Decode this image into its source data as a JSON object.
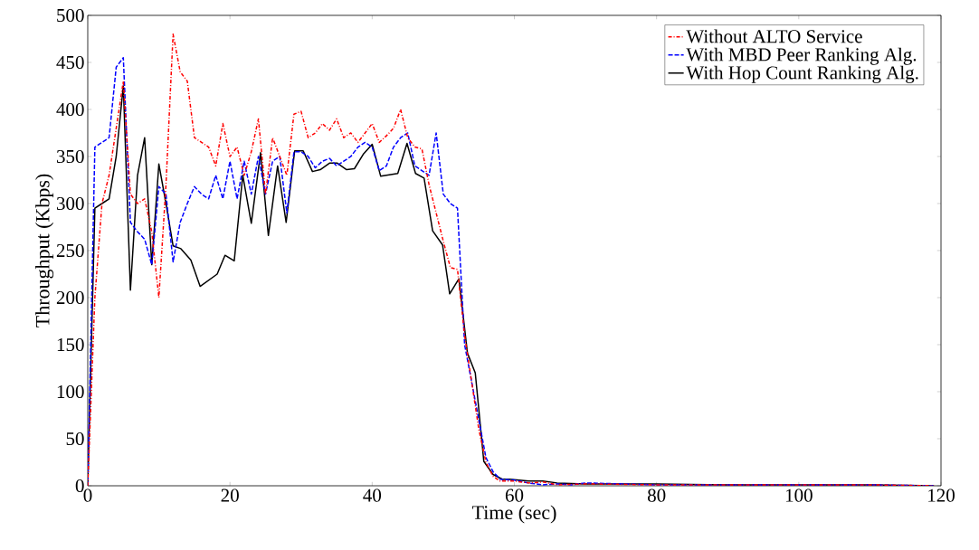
{
  "chart_data": {
    "type": "line",
    "xlabel": "Time (sec)",
    "ylabel": "Throughput (Kbps)",
    "xlim": [
      0,
      120
    ],
    "ylim": [
      0,
      500
    ],
    "xticks": [
      0,
      20,
      40,
      60,
      80,
      100,
      120
    ],
    "yticks": [
      0,
      50,
      100,
      150,
      200,
      250,
      300,
      350,
      400,
      450,
      500
    ],
    "grid": false,
    "legend": "top right",
    "marker": "none",
    "series": [
      {
        "name": "Without ALTO Service",
        "color": "#ff0000",
        "line_style": "dashdot",
        "x": [
          0,
          1,
          2,
          3,
          4,
          5,
          6,
          7,
          8,
          9,
          10,
          11,
          12,
          13,
          14,
          15,
          16,
          17,
          18,
          19,
          20,
          21,
          22,
          23,
          24,
          25,
          26,
          27,
          28,
          29,
          30,
          31,
          32,
          33,
          34,
          35,
          36,
          37,
          38,
          39,
          40,
          41,
          42,
          43,
          44,
          45,
          46,
          47,
          48,
          49,
          50,
          51,
          52,
          53,
          54,
          55,
          56,
          57,
          58,
          60,
          62,
          64,
          66,
          70,
          80,
          90,
          100,
          110,
          119
        ],
        "values": [
          0,
          200,
          300,
          330,
          380,
          430,
          310,
          300,
          305,
          270,
          200,
          320,
          480,
          440,
          430,
          370,
          365,
          360,
          340,
          385,
          350,
          360,
          330,
          355,
          390,
          310,
          370,
          350,
          330,
          395,
          398,
          370,
          375,
          385,
          378,
          390,
          370,
          375,
          365,
          375,
          385,
          365,
          372,
          380,
          400,
          370,
          360,
          358,
          320,
          290,
          260,
          232,
          230,
          160,
          110,
          60,
          25,
          10,
          5,
          5,
          3,
          4,
          1,
          2,
          1,
          1,
          null,
          1,
          0
        ]
      },
      {
        "name": "With MBD Peer Ranking Alg.",
        "color": "#0000ff",
        "line_style": "dashed",
        "x": [
          0,
          1,
          2,
          3,
          4,
          5,
          6,
          7,
          8,
          9,
          10,
          11,
          12,
          13,
          14,
          15,
          16,
          17,
          18,
          19,
          20,
          21,
          22,
          23,
          24,
          25,
          26,
          27,
          28,
          29,
          30,
          31,
          32,
          33,
          34,
          35,
          36,
          37,
          38,
          39,
          40,
          41,
          42,
          43,
          44,
          45,
          46,
          47,
          48,
          49,
          50,
          51,
          52,
          53,
          54,
          55,
          56,
          57,
          58,
          60,
          62,
          64,
          66,
          68,
          70,
          80,
          90,
          100,
          110,
          119
        ],
        "values": [
          0,
          360,
          365,
          370,
          445,
          455,
          280,
          270,
          262,
          235,
          318,
          310,
          238,
          280,
          300,
          318,
          310,
          305,
          330,
          305,
          345,
          305,
          345,
          310,
          350,
          310,
          345,
          350,
          290,
          355,
          355,
          350,
          338,
          345,
          348,
          340,
          345,
          350,
          360,
          365,
          360,
          335,
          340,
          360,
          370,
          375,
          340,
          335,
          330,
          375,
          310,
          300,
          295,
          150,
          110,
          70,
          30,
          15,
          7,
          6,
          3,
          1,
          2,
          1,
          3,
          1,
          1,
          1,
          1,
          0
        ]
      },
      {
        "name": "With Hop Count Ranking Alg.",
        "color": "#000000",
        "line_style": "solid",
        "x": [
          0,
          1,
          2,
          3,
          4,
          5,
          6,
          7,
          8,
          9,
          10,
          11,
          12,
          13.1,
          14.5,
          15.8,
          18.2,
          19.3,
          20.6,
          21.8,
          23,
          24.3,
          25.4,
          26.7,
          27.9,
          29.1,
          30.3,
          31.6,
          32.7,
          34,
          35.1,
          36.4,
          37.5,
          38.8,
          40,
          41.2,
          43.6,
          44.9,
          46.1,
          47.3,
          48.5,
          49.9,
          50.9,
          52.2,
          53.4,
          54.5,
          55.7,
          57,
          58.3,
          59.3,
          62,
          64,
          66,
          70,
          80,
          90,
          100,
          110,
          119
        ],
        "values": [
          0,
          295,
          300,
          305,
          350,
          425,
          208,
          330,
          370,
          235,
          342,
          300,
          255,
          252,
          240,
          212,
          225,
          245,
          239,
          330,
          279,
          354,
          266,
          340,
          280,
          356,
          356,
          334,
          336,
          343,
          343,
          336,
          337,
          353,
          363,
          329,
          332,
          364,
          332,
          327,
          271,
          256,
          204,
          220,
          141,
          120,
          26,
          12,
          7,
          7,
          5,
          5,
          3,
          2,
          2,
          1,
          1,
          1,
          0
        ]
      }
    ]
  }
}
